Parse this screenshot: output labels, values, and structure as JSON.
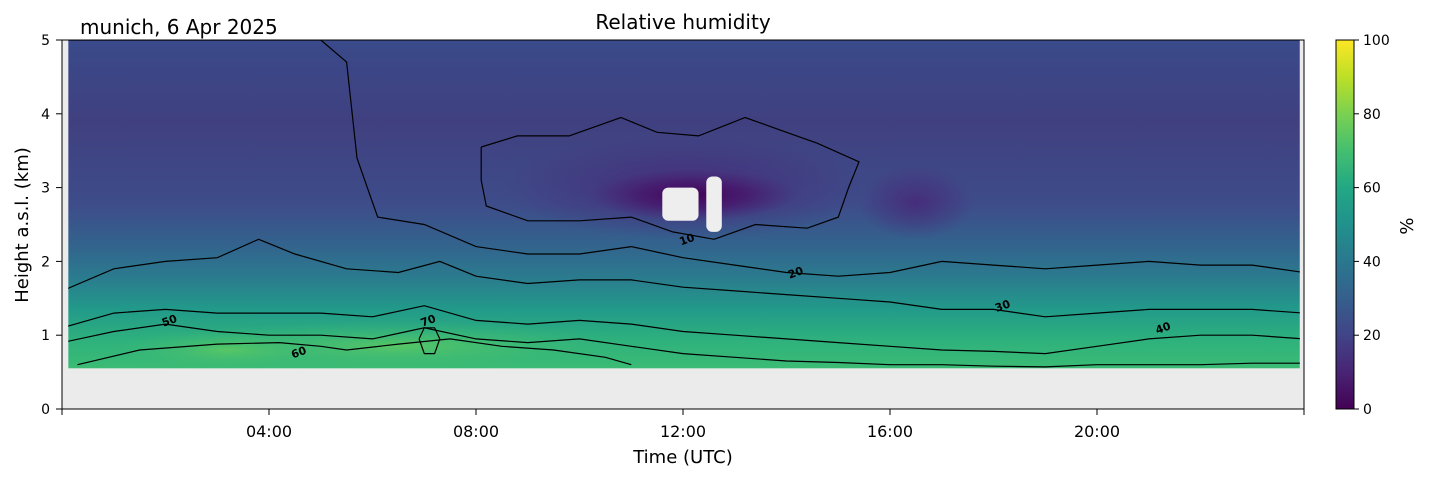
{
  "chart_data": {
    "type": "heatmap",
    "title": "Relative humidity",
    "subtitle": "munich, 6 Apr 2025",
    "xlabel": "Time (UTC)",
    "ylabel": "Height a.s.l. (km)",
    "xlim": [
      0,
      24
    ],
    "ylim": [
      0,
      5
    ],
    "x_ticks": [
      {
        "value": 4,
        "label": "04:00"
      },
      {
        "value": 8,
        "label": "08:00"
      },
      {
        "value": 12,
        "label": "12:00"
      },
      {
        "value": 16,
        "label": "16:00"
      },
      {
        "value": 20,
        "label": "20:00"
      }
    ],
    "y_ticks": [
      {
        "value": 0,
        "label": "0"
      },
      {
        "value": 1,
        "label": "1"
      },
      {
        "value": 2,
        "label": "2"
      },
      {
        "value": 3,
        "label": "3"
      },
      {
        "value": 4,
        "label": "4"
      },
      {
        "value": 5,
        "label": "5"
      }
    ],
    "data_bottom_km": 0.55,
    "colorbar": {
      "label": "%",
      "range": [
        0,
        100
      ],
      "colormap": "viridis",
      "ticks": [
        {
          "value": 0,
          "label": "0"
        },
        {
          "value": 20,
          "label": "20"
        },
        {
          "value": 40,
          "label": "40"
        },
        {
          "value": 60,
          "label": "60"
        },
        {
          "value": 80,
          "label": "80"
        },
        {
          "value": 100,
          "label": "100"
        }
      ]
    },
    "contours": [
      {
        "level": 10,
        "label": "10",
        "label_at": [
          12.1,
          2.25
        ],
        "points": [
          [
            8.1,
            3.55
          ],
          [
            8.8,
            3.7
          ],
          [
            9.8,
            3.7
          ],
          [
            10.8,
            3.95
          ],
          [
            11.5,
            3.75
          ],
          [
            12.3,
            3.7
          ],
          [
            13.2,
            3.95
          ],
          [
            14,
            3.75
          ],
          [
            14.6,
            3.6
          ],
          [
            15.4,
            3.35
          ],
          [
            15.2,
            3.0
          ],
          [
            15.0,
            2.6
          ],
          [
            14.4,
            2.45
          ],
          [
            13.4,
            2.5
          ],
          [
            12.6,
            2.3
          ],
          [
            11.8,
            2.4
          ],
          [
            11,
            2.6
          ],
          [
            10,
            2.55
          ],
          [
            9,
            2.55
          ],
          [
            8.2,
            2.75
          ],
          [
            8.1,
            3.1
          ],
          [
            8.1,
            3.55
          ]
        ]
      },
      {
        "level": 20,
        "label": "20",
        "label_at": [
          14.2,
          1.8
        ],
        "points": [
          [
            0,
            5.0
          ],
          [
            2.0,
            5.0
          ],
          [
            3.5,
            5.0
          ],
          [
            5.0,
            5.0
          ],
          [
            5.5,
            4.7
          ],
          [
            5.7,
            3.4
          ],
          [
            5.9,
            3.0
          ],
          [
            6.1,
            2.6
          ],
          [
            7,
            2.5
          ],
          [
            8,
            2.2
          ],
          [
            9,
            2.1
          ],
          [
            10,
            2.1
          ],
          [
            11,
            2.2
          ],
          [
            12,
            2.05
          ],
          [
            13,
            1.95
          ],
          [
            14,
            1.85
          ],
          [
            15,
            1.8
          ],
          [
            16,
            1.85
          ],
          [
            17,
            2.0
          ],
          [
            18,
            1.95
          ],
          [
            19,
            1.9
          ],
          [
            20,
            1.95
          ],
          [
            21,
            2.0
          ],
          [
            22,
            1.95
          ],
          [
            23,
            1.95
          ],
          [
            24,
            1.85
          ]
        ]
      },
      {
        "level": 30,
        "label": "30",
        "label_at": [
          18.2,
          1.35
        ],
        "points": [
          [
            0,
            1.6
          ],
          [
            1,
            1.9
          ],
          [
            2,
            2.0
          ],
          [
            3,
            2.05
          ],
          [
            3.8,
            2.3
          ],
          [
            4.5,
            2.1
          ],
          [
            5.5,
            1.9
          ],
          [
            6.5,
            1.85
          ],
          [
            7.3,
            2.0
          ],
          [
            8,
            1.8
          ],
          [
            9,
            1.7
          ],
          [
            10,
            1.75
          ],
          [
            11,
            1.75
          ],
          [
            12,
            1.65
          ],
          [
            13,
            1.6
          ],
          [
            14,
            1.55
          ],
          [
            15,
            1.5
          ],
          [
            16,
            1.45
          ],
          [
            17,
            1.35
          ],
          [
            18,
            1.35
          ],
          [
            19,
            1.25
          ],
          [
            20,
            1.3
          ],
          [
            21,
            1.35
          ],
          [
            22,
            1.35
          ],
          [
            23,
            1.35
          ],
          [
            24,
            1.3
          ]
        ]
      },
      {
        "level": 40,
        "label": "40",
        "label_at": [
          21.3,
          1.05
        ],
        "points": [
          [
            0,
            1.1
          ],
          [
            1,
            1.3
          ],
          [
            2,
            1.35
          ],
          [
            3,
            1.3
          ],
          [
            4,
            1.3
          ],
          [
            5,
            1.3
          ],
          [
            6,
            1.25
          ],
          [
            7,
            1.4
          ],
          [
            8,
            1.2
          ],
          [
            9,
            1.15
          ],
          [
            10,
            1.2
          ],
          [
            11,
            1.15
          ],
          [
            12,
            1.05
          ],
          [
            13,
            1.0
          ],
          [
            14,
            0.95
          ],
          [
            15,
            0.9
          ],
          [
            16,
            0.85
          ],
          [
            17,
            0.8
          ],
          [
            18,
            0.78
          ],
          [
            19,
            0.75
          ],
          [
            20,
            0.85
          ],
          [
            21,
            0.95
          ],
          [
            22,
            1.0
          ],
          [
            23,
            1.0
          ],
          [
            24,
            0.95
          ]
        ]
      },
      {
        "level": 50,
        "label": "50",
        "label_at": [
          2.1,
          1.15
        ],
        "points": [
          [
            0,
            0.9
          ],
          [
            1,
            1.05
          ],
          [
            2,
            1.15
          ],
          [
            3,
            1.05
          ],
          [
            4,
            1.0
          ],
          [
            5,
            1.0
          ],
          [
            6,
            0.95
          ],
          [
            7,
            1.1
          ],
          [
            8,
            0.95
          ],
          [
            9,
            0.9
          ],
          [
            10,
            0.95
          ],
          [
            11,
            0.85
          ],
          [
            12,
            0.75
          ],
          [
            13,
            0.7
          ],
          [
            14,
            0.65
          ],
          [
            15,
            0.63
          ],
          [
            16,
            0.6
          ],
          [
            17,
            0.6
          ],
          [
            18,
            0.58
          ],
          [
            19,
            0.57
          ],
          [
            20,
            0.6
          ],
          [
            21,
            0.6
          ],
          [
            22,
            0.6
          ],
          [
            23,
            0.62
          ],
          [
            24,
            0.62
          ]
        ]
      },
      {
        "level": 60,
        "label": "60",
        "label_at": [
          4.6,
          0.72
        ],
        "points": [
          [
            0.3,
            0.6
          ],
          [
            1.5,
            0.8
          ],
          [
            3,
            0.88
          ],
          [
            4.2,
            0.9
          ],
          [
            5,
            0.85
          ],
          [
            5.5,
            0.8
          ],
          [
            6.5,
            0.88
          ],
          [
            7.5,
            0.95
          ],
          [
            8.5,
            0.85
          ],
          [
            9.5,
            0.8
          ],
          [
            10.5,
            0.7
          ],
          [
            11,
            0.6
          ]
        ]
      },
      {
        "level": 70,
        "label": "70",
        "label_at": [
          7.1,
          1.15
        ],
        "points": [
          [
            6.9,
            0.95
          ],
          [
            7.0,
            0.75
          ],
          [
            7.2,
            0.75
          ],
          [
            7.3,
            0.95
          ],
          [
            7.2,
            1.1
          ],
          [
            7.0,
            1.1
          ],
          [
            6.9,
            0.95
          ]
        ]
      }
    ],
    "missing_regions": [
      {
        "x": [
          11.6,
          12.3
        ],
        "y": [
          2.55,
          3.0
        ]
      },
      {
        "x": [
          12.45,
          12.75
        ],
        "y": [
          2.4,
          3.15
        ]
      }
    ]
  }
}
